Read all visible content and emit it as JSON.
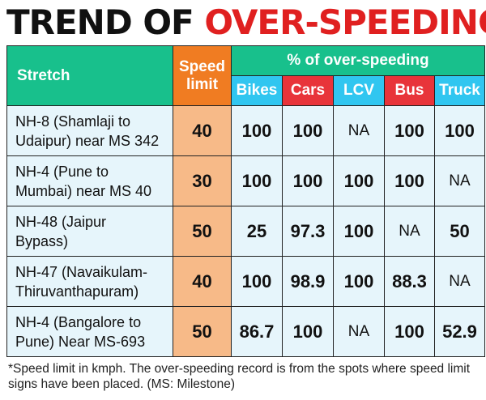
{
  "title": {
    "part1": "TREND OF ",
    "part2": "OVER-SPEEDING"
  },
  "colors": {
    "green": "#18c08c",
    "orange": "#f07c22",
    "cyan": "#30c6f0",
    "red": "#e8343a",
    "title_red": "#e02020"
  },
  "chart_data": {
    "type": "table",
    "header": {
      "stretch": "Stretch",
      "speed_line1": "Speed",
      "speed_line2": "limit",
      "group": "% of over-speeding",
      "vehicles": [
        "Bikes",
        "Cars",
        "LCV",
        "Bus",
        "Truck"
      ]
    },
    "rows": [
      {
        "stretch_line1": "NH-8 (Shamlaji to",
        "stretch_line2": "Udaipur) near MS 342",
        "speed": "40",
        "values": [
          "100",
          "100",
          "NA",
          "100",
          "100"
        ]
      },
      {
        "stretch_line1": "NH-4 (Pune to",
        "stretch_line2": "Mumbai) near MS 40",
        "speed": "30",
        "values": [
          "100",
          "100",
          "100",
          "100",
          "NA"
        ]
      },
      {
        "stretch_line1": "NH-48 (Jaipur",
        "stretch_line2": "Bypass)",
        "speed": "50",
        "values": [
          "25",
          "97.3",
          "100",
          "NA",
          "50"
        ]
      },
      {
        "stretch_line1": "NH-47 (Navaikulam-",
        "stretch_line2": "Thiruvanthapuram)",
        "speed": "40",
        "values": [
          "100",
          "98.9",
          "100",
          "88.3",
          "NA"
        ]
      },
      {
        "stretch_line1": "NH-4 (Bangalore to",
        "stretch_line2": "Pune) Near MS-693",
        "speed": "50",
        "values": [
          "86.7",
          "100",
          "NA",
          "100",
          "52.9"
        ]
      }
    ]
  },
  "footnote": "*Speed limit in kmph. The over-speeding record is from the spots where speed limit signs have been placed. (MS: Milestone)"
}
